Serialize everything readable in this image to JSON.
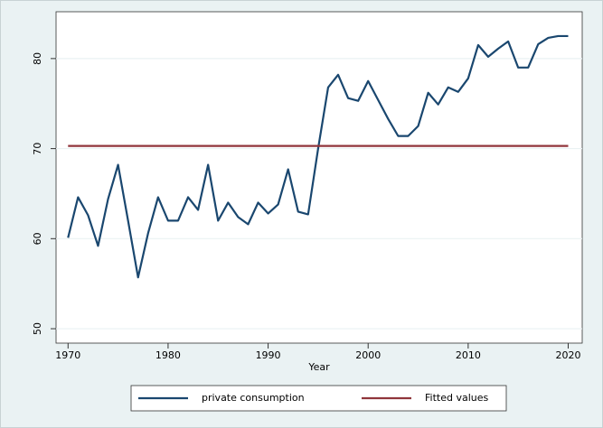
{
  "chart_data": {
    "type": "line",
    "x_label": "Year",
    "x": [
      1970,
      1971,
      1972,
      1973,
      1974,
      1975,
      1976,
      1977,
      1978,
      1979,
      1980,
      1981,
      1982,
      1983,
      1984,
      1985,
      1986,
      1987,
      1988,
      1989,
      1990,
      1991,
      1992,
      1993,
      1994,
      1995,
      1996,
      1997,
      1998,
      1999,
      2000,
      2001,
      2002,
      2003,
      2004,
      2005,
      2006,
      2007,
      2008,
      2009,
      2010,
      2011,
      2012,
      2013,
      2014,
      2015,
      2016,
      2017,
      2018,
      2019,
      2020
    ],
    "series": [
      {
        "name": "private consumption",
        "color": "#1a476f",
        "values": [
          60.1,
          64.6,
          62.6,
          59.2,
          64.4,
          68.2,
          62,
          55.7,
          60.6,
          64.6,
          62,
          62,
          64.6,
          63.2,
          68.2,
          62,
          64,
          62.4,
          61.6,
          64,
          62.8,
          63.8,
          67.7,
          63,
          62.7,
          70,
          76.8,
          78.2,
          75.6,
          75.3,
          77.5,
          75.4,
          73.3,
          71.4,
          71.4,
          72.5,
          76.2,
          74.9,
          76.8,
          76.3,
          77.8,
          81.5,
          80.2,
          81.1,
          81.9,
          79,
          79,
          81.6,
          82.3,
          82.5,
          82.5
        ]
      },
      {
        "name": "Fitted values",
        "color": "#90353b",
        "values": [
          70.3,
          70.3,
          70.3,
          70.3,
          70.3,
          70.3,
          70.3,
          70.3,
          70.3,
          70.3,
          70.3,
          70.3,
          70.3,
          70.3,
          70.3,
          70.3,
          70.3,
          70.3,
          70.3,
          70.3,
          70.3,
          70.3,
          70.3,
          70.3,
          70.3,
          70.3,
          70.3,
          70.3,
          70.3,
          70.3,
          70.3,
          70.3,
          70.3,
          70.3,
          70.3,
          70.3,
          70.3,
          70.3,
          70.3,
          70.3,
          70.3,
          70.3,
          70.3,
          70.3,
          70.3,
          70.3,
          70.3,
          70.3,
          70.3,
          70.3,
          70.3
        ]
      }
    ],
    "xlim": [
      1968.8,
      2021.4
    ],
    "xticks": [
      1970,
      1980,
      1990,
      2000,
      2010,
      2020
    ],
    "ylim": [
      48.4,
      85.2
    ],
    "yticks": [
      50,
      60,
      70,
      80
    ],
    "grid": true,
    "legend": "bottom"
  }
}
